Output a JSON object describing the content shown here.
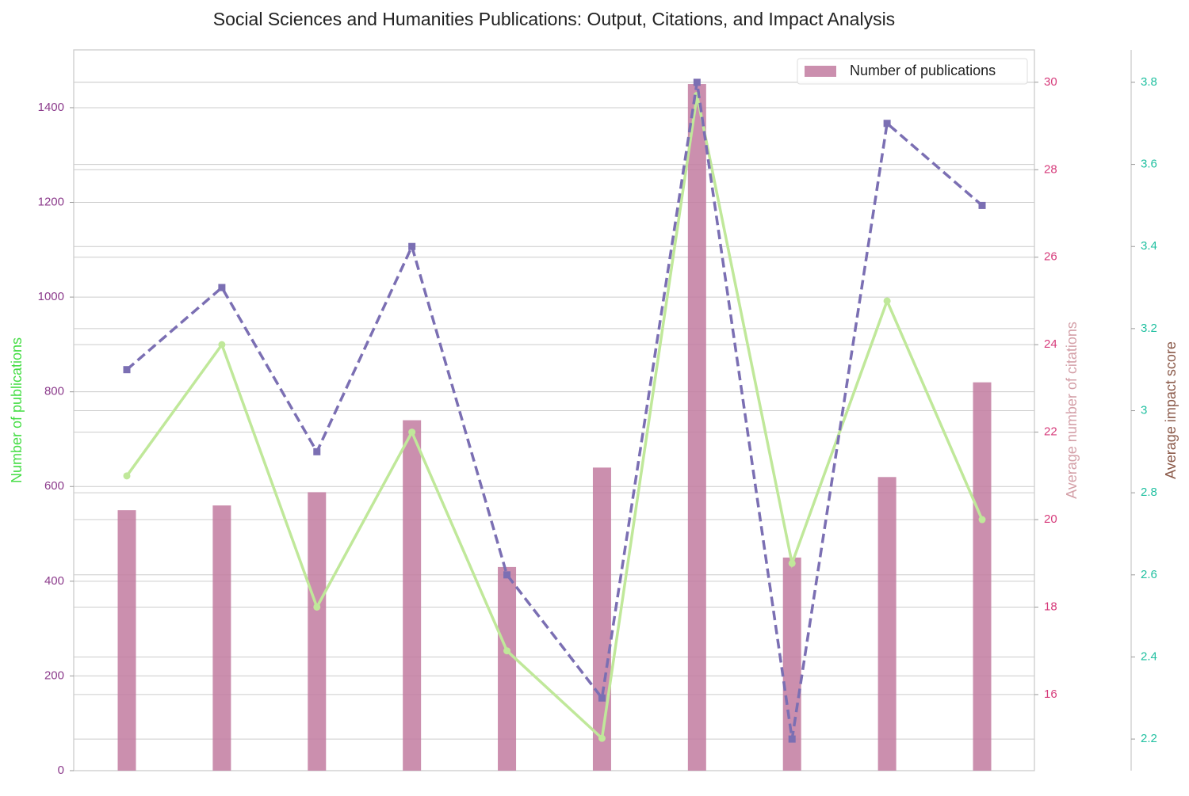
{
  "chart_data": {
    "type": "bar",
    "title": "Social Sciences and Humanities Publications: Output, Citations, and Impact Analysis",
    "categories": [
      null,
      null,
      null,
      null,
      null,
      null,
      null,
      null,
      null,
      null
    ],
    "ylabel": "Number of publications",
    "y2label": "Average number of citations",
    "y3label": "Average impact score",
    "ylim": [
      0,
      1522
    ],
    "yticks": [
      0,
      200,
      400,
      600,
      800,
      1000,
      1200,
      1400
    ],
    "y2lim": [
      14.26,
      30.74
    ],
    "y2ticks": [
      16,
      18,
      20,
      22,
      24,
      26,
      28,
      30
    ],
    "y3lim": [
      2.123,
      3.879
    ],
    "y3ticks": [
      2.2,
      2.4,
      2.6,
      2.8,
      3.0,
      3.2,
      3.4,
      3.6,
      3.8
    ],
    "grid": true,
    "legend": "upper right",
    "series": [
      {
        "name": "Number of publications",
        "type": "bar",
        "color": "#c27ba0",
        "values": [
          550,
          560,
          588,
          740,
          430,
          640,
          1450,
          450,
          620,
          820
        ]
      },
      {
        "type": "line",
        "axis": "y2",
        "color": "#c0e89a",
        "values": [
          21,
          24,
          18,
          22,
          17,
          15,
          29.7,
          19,
          25,
          20
        ]
      },
      {
        "type": "line",
        "axis": "y3",
        "color": "#7b6fb3",
        "dashed": true,
        "marker": "square",
        "values": [
          3.1,
          3.3,
          2.9,
          3.4,
          2.6,
          2.3,
          3.8,
          2.2,
          3.7,
          3.5
        ]
      }
    ]
  }
}
